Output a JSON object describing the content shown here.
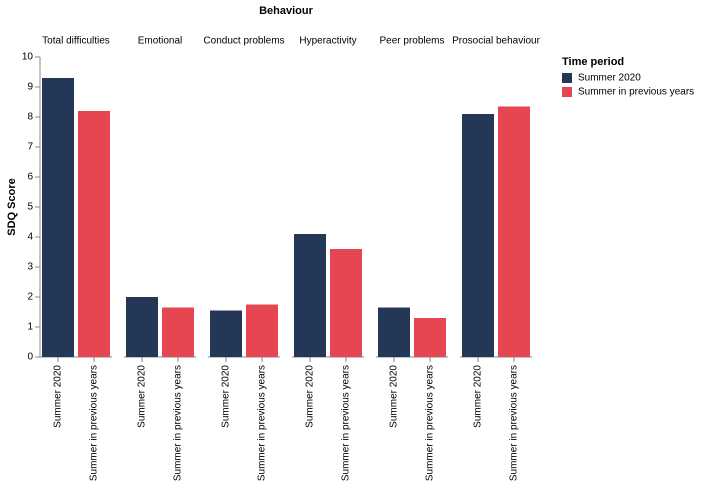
{
  "chart_data": {
    "type": "bar",
    "title": "Behaviour",
    "categories": [
      "Total difficulties",
      "Emotional",
      "Conduct problems",
      "Hyperactivity",
      "Peer problems",
      "Prosocial behaviour"
    ],
    "series": [
      {
        "name": "Summer 2020",
        "color": "#243756",
        "values": [
          9.3,
          2.0,
          1.55,
          4.1,
          1.65,
          8.1
        ]
      },
      {
        "name": "Summer in previous years",
        "color": "#e64652",
        "values": [
          8.2,
          1.65,
          1.75,
          3.6,
          1.3,
          8.35
        ]
      }
    ],
    "y_label": "SDQ Score",
    "legend_title": "Time period",
    "legend": "top-right",
    "ylim": [
      0,
      10
    ],
    "yticks": [
      0,
      1,
      2,
      3,
      4,
      5,
      6,
      7,
      8,
      9,
      10
    ],
    "grid": false
  }
}
